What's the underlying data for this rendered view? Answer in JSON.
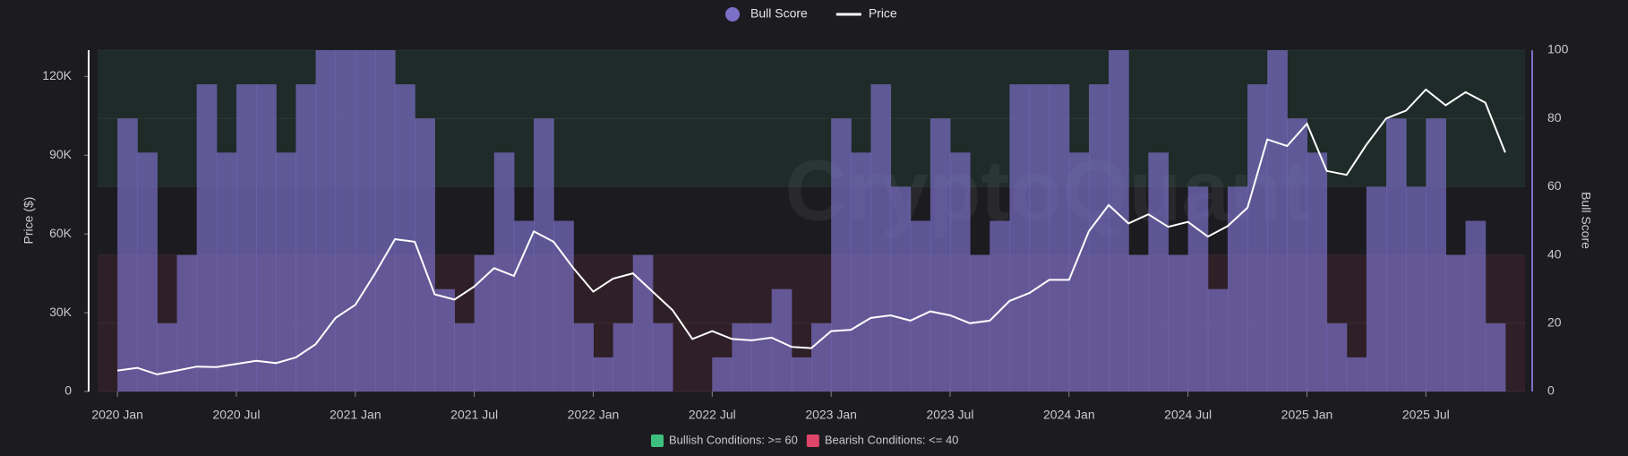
{
  "chart_data": {
    "type": "dual-axis",
    "watermark": "CryptoQuant",
    "ylabel": "Price ($)",
    "y2label": "Bull Score",
    "ylim": [
      0,
      130000
    ],
    "yticks": [
      0,
      {
        "value": 30000,
        "label": "30K"
      },
      {
        "value": 60000,
        "label": "60K"
      },
      {
        "value": 90000,
        "label": "90K"
      },
      {
        "value": 120000,
        "label": "120K"
      }
    ],
    "y2lim": [
      0,
      100
    ],
    "y2ticks": [
      0,
      20,
      40,
      60,
      80,
      100
    ],
    "xlim": [
      "2019-12",
      "2025-12"
    ],
    "xticks": [
      {
        "value": "2020-01",
        "label": "2020 Jan"
      },
      {
        "value": "2020-07",
        "label": "2020 Jul"
      },
      {
        "value": "2021-01",
        "label": "2021 Jan"
      },
      {
        "value": "2021-07",
        "label": "2021 Jul"
      },
      {
        "value": "2022-01",
        "label": "2022 Jan"
      },
      {
        "value": "2022-07",
        "label": "2022 Jul"
      },
      {
        "value": "2023-01",
        "label": "2023 Jan"
      },
      {
        "value": "2023-07",
        "label": "2023 Jul"
      },
      {
        "value": "2024-01",
        "label": "2024 Jan"
      },
      {
        "value": "2024-07",
        "label": "2024 Jul"
      },
      {
        "value": "2025-01",
        "label": "2025 Jan"
      },
      {
        "value": "2025-07",
        "label": "2025 Jul"
      }
    ],
    "x": [
      "2020-01",
      "2020-02",
      "2020-03",
      "2020-04",
      "2020-05",
      "2020-06",
      "2020-07",
      "2020-08",
      "2020-09",
      "2020-10",
      "2020-11",
      "2020-12",
      "2021-01",
      "2021-02",
      "2021-03",
      "2021-04",
      "2021-05",
      "2021-06",
      "2021-07",
      "2021-08",
      "2021-09",
      "2021-10",
      "2021-11",
      "2021-12",
      "2022-01",
      "2022-02",
      "2022-03",
      "2022-04",
      "2022-05",
      "2022-06",
      "2022-07",
      "2022-08",
      "2022-09",
      "2022-10",
      "2022-11",
      "2022-12",
      "2023-01",
      "2023-02",
      "2023-03",
      "2023-04",
      "2023-05",
      "2023-06",
      "2023-07",
      "2023-08",
      "2023-09",
      "2023-10",
      "2023-11",
      "2023-12",
      "2024-01",
      "2024-02",
      "2024-03",
      "2024-04",
      "2024-05",
      "2024-06",
      "2024-07",
      "2024-08",
      "2024-09",
      "2024-10",
      "2024-11",
      "2024-12",
      "2025-01",
      "2025-02",
      "2025-03",
      "2025-04",
      "2025-05",
      "2025-06",
      "2025-07",
      "2025-08",
      "2025-09",
      "2025-10",
      "2025-11"
    ],
    "series": [
      {
        "name": "Bull Score",
        "color": "#7b6fc6",
        "axis": "y2",
        "style": "step-area",
        "values": [
          80,
          70,
          20,
          40,
          90,
          70,
          90,
          90,
          70,
          90,
          100,
          100,
          100,
          100,
          90,
          80,
          30,
          20,
          40,
          70,
          50,
          80,
          50,
          20,
          10,
          20,
          40,
          20,
          0,
          0,
          10,
          20,
          20,
          30,
          10,
          20,
          80,
          70,
          90,
          60,
          50,
          80,
          70,
          40,
          50,
          90,
          90,
          90,
          70,
          90,
          100,
          40,
          70,
          40,
          60,
          30,
          60,
          90,
          100,
          80,
          70,
          20,
          10,
          60,
          80,
          60,
          80,
          40,
          50,
          20,
          0
        ]
      },
      {
        "name": "Price",
        "color": "#ffffff",
        "axis": "y",
        "style": "line",
        "values": [
          8000,
          9000,
          6500,
          8000,
          9500,
          9300,
          10500,
          11700,
          10800,
          13000,
          18000,
          28000,
          33000,
          45000,
          58000,
          57000,
          37000,
          35000,
          40000,
          47000,
          44000,
          61000,
          57000,
          47000,
          38000,
          43000,
          45000,
          38000,
          31000,
          20000,
          23000,
          20000,
          19500,
          20500,
          17000,
          16500,
          23000,
          23500,
          28000,
          29000,
          27000,
          30500,
          29000,
          26000,
          27000,
          34500,
          37500,
          42500,
          42500,
          61000,
          71000,
          64000,
          67500,
          62700,
          64600,
          59000,
          63000,
          70000,
          96000,
          93500,
          102000,
          84000,
          82500,
          94000,
          104000,
          107000,
          115000,
          109000,
          114000,
          110000,
          91000
        ]
      }
    ],
    "zones": [
      {
        "label": "Bullish Conditions: >= 60",
        "from": 60,
        "to": 100,
        "color": "#3fbf7f"
      },
      {
        "label": "Bearish Conditions: <= 40",
        "from": 0,
        "to": 40,
        "color": "#e0456a"
      }
    ]
  }
}
